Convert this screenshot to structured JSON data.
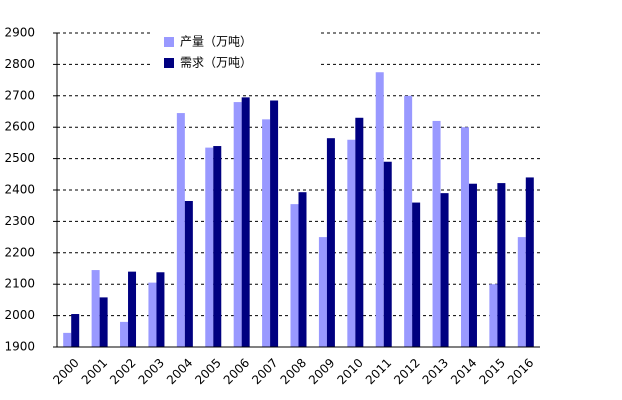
{
  "chart_data": {
    "type": "bar",
    "categories": [
      "2000",
      "2001",
      "2002",
      "2003",
      "2004",
      "2005",
      "2006",
      "2007",
      "2008",
      "2009",
      "2010",
      "2011",
      "2012",
      "2013",
      "2014",
      "2015",
      "2016"
    ],
    "series": [
      {
        "name": "产量（万吨）",
        "color": "#9999ff",
        "values": [
          1945,
          2145,
          1980,
          2105,
          2645,
          2535,
          2680,
          2625,
          2355,
          2250,
          2560,
          2775,
          2700,
          2620,
          2600,
          2100,
          2250
        ]
      },
      {
        "name": "需求（万吨）",
        "color": "#000080",
        "values": [
          2005,
          2058,
          2140,
          2138,
          2365,
          2540,
          2695,
          2685,
          2393,
          2565,
          2630,
          2490,
          2360,
          2390,
          2420,
          2422,
          2440
        ]
      }
    ],
    "ylim": [
      1900,
      2900
    ],
    "yticks": [
      1900,
      2000,
      2100,
      2200,
      2300,
      2400,
      2500,
      2600,
      2700,
      2800,
      2900
    ],
    "grid": true,
    "legend": "top"
  }
}
